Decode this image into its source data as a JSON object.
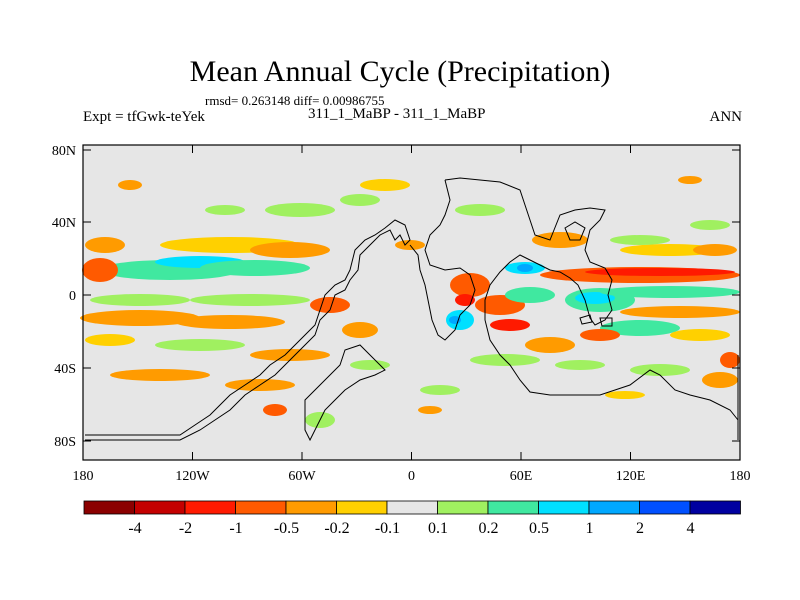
{
  "title": "Mean Annual Cycle (Precipitation)",
  "stats_text": "rmsd= 0.263148 diff= 0.00986755",
  "experiment_label": "Expt = tfGwk-teYek",
  "case_label": "311_1_MaBP - 311_1_MaBP",
  "season_label": "ANN",
  "x_ticks": [
    "180",
    "120W",
    "60W",
    "0",
    "60E",
    "120E",
    "180"
  ],
  "y_ticks": [
    "80N",
    "40N",
    "0",
    "40S",
    "80S"
  ],
  "colorbar": {
    "colors": [
      "#8b0000",
      "#c40000",
      "#ff1a00",
      "#ff5a00",
      "#ff9b00",
      "#ffd000",
      "#e6e6e6",
      "#a0f060",
      "#40e8a0",
      "#00e0ff",
      "#00a8ff",
      "#0050ff",
      "#0000a0"
    ],
    "labels": [
      "-4",
      "-2",
      "-1",
      "-0.5",
      "-0.2",
      "-0.1",
      "0.1",
      "0.2",
      "0.5",
      "1",
      "2",
      "4"
    ]
  },
  "map_background": "#e6e6e6"
}
